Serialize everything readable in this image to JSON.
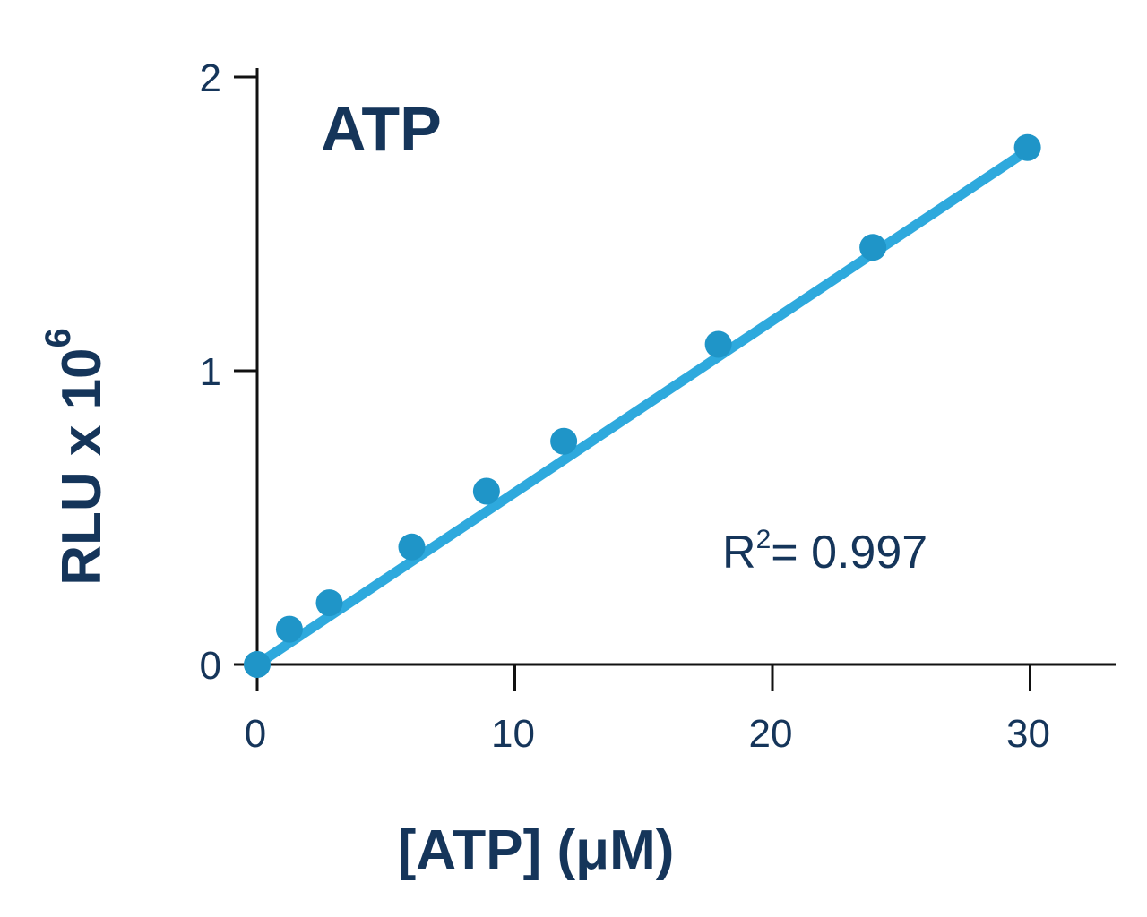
{
  "chart_data": {
    "type": "scatter",
    "title": "ATP",
    "xlabel": "[ATP] (μM)",
    "ylabel": {
      "base": "RLU x 10",
      "exponent": "6"
    },
    "xlim": [
      0,
      33
    ],
    "ylim": [
      0,
      2
    ],
    "xticks": [
      0,
      10,
      20,
      30
    ],
    "xtick_labels": [
      "0",
      "10",
      "20",
      "30"
    ],
    "yticks": [
      0,
      1,
      2
    ],
    "ytick_labels": [
      "0",
      "1",
      "2"
    ],
    "grid": false,
    "legend": "none",
    "series": [
      {
        "x": [
          0,
          1.25,
          2.8,
          6,
          8.9,
          11.9,
          17.9,
          23.9,
          29.9
        ],
        "y": [
          0,
          0.12,
          0.21,
          0.4,
          0.59,
          0.76,
          1.09,
          1.42,
          1.76
        ]
      }
    ],
    "fit_line": {
      "x": [
        0,
        29.9
      ],
      "y": [
        0,
        1.75
      ]
    },
    "annotation": {
      "prefix": "R",
      "superscript": "2",
      "text": "= 0.997"
    },
    "colors": {
      "points": "#1f95c8",
      "line": "#2ea9dd",
      "text": "#15355a",
      "axes": "#111111"
    }
  }
}
